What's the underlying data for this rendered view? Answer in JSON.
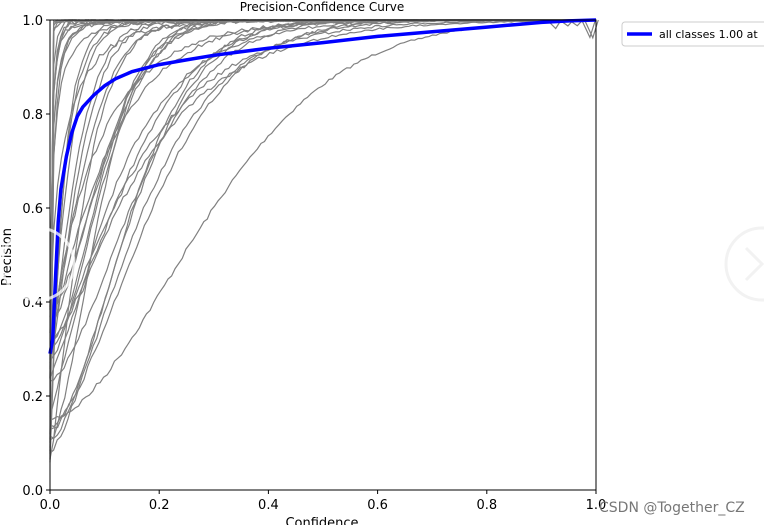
{
  "chart_data": {
    "type": "line",
    "title": "Precision-Confidence Curve",
    "xlabel": "Confidence",
    "ylabel": "Precision",
    "xlim": [
      0,
      1
    ],
    "ylim": [
      0,
      1
    ],
    "xticks": [
      "0.0",
      "0.2",
      "0.4",
      "0.6",
      "0.8",
      "1.0"
    ],
    "yticks": [
      "0.0",
      "0.2",
      "0.4",
      "0.6",
      "0.8",
      "1.0"
    ],
    "grid": false,
    "legend_position": "outside-top-right",
    "legend": [
      "all classes 1.00 at"
    ],
    "colors": {
      "class_lines": "#808080",
      "all_classes": "#0000ff"
    },
    "series": [
      {
        "name": "all classes 1.00 at",
        "x": [
          0.0,
          0.005,
          0.01,
          0.015,
          0.02,
          0.03,
          0.04,
          0.05,
          0.06,
          0.08,
          0.1,
          0.12,
          0.15,
          0.2,
          0.25,
          0.3,
          0.4,
          0.5,
          0.6,
          0.7,
          0.8,
          0.85,
          0.9,
          0.95,
          1.0
        ],
        "y": [
          0.29,
          0.32,
          0.45,
          0.57,
          0.64,
          0.71,
          0.76,
          0.795,
          0.815,
          0.84,
          0.86,
          0.875,
          0.89,
          0.905,
          0.915,
          0.925,
          0.94,
          0.952,
          0.965,
          0.975,
          0.985,
          0.99,
          0.995,
          0.998,
          1.0
        ]
      }
    ],
    "class_curve_count": 40
  },
  "watermark": "CSDN @Together_CZ"
}
